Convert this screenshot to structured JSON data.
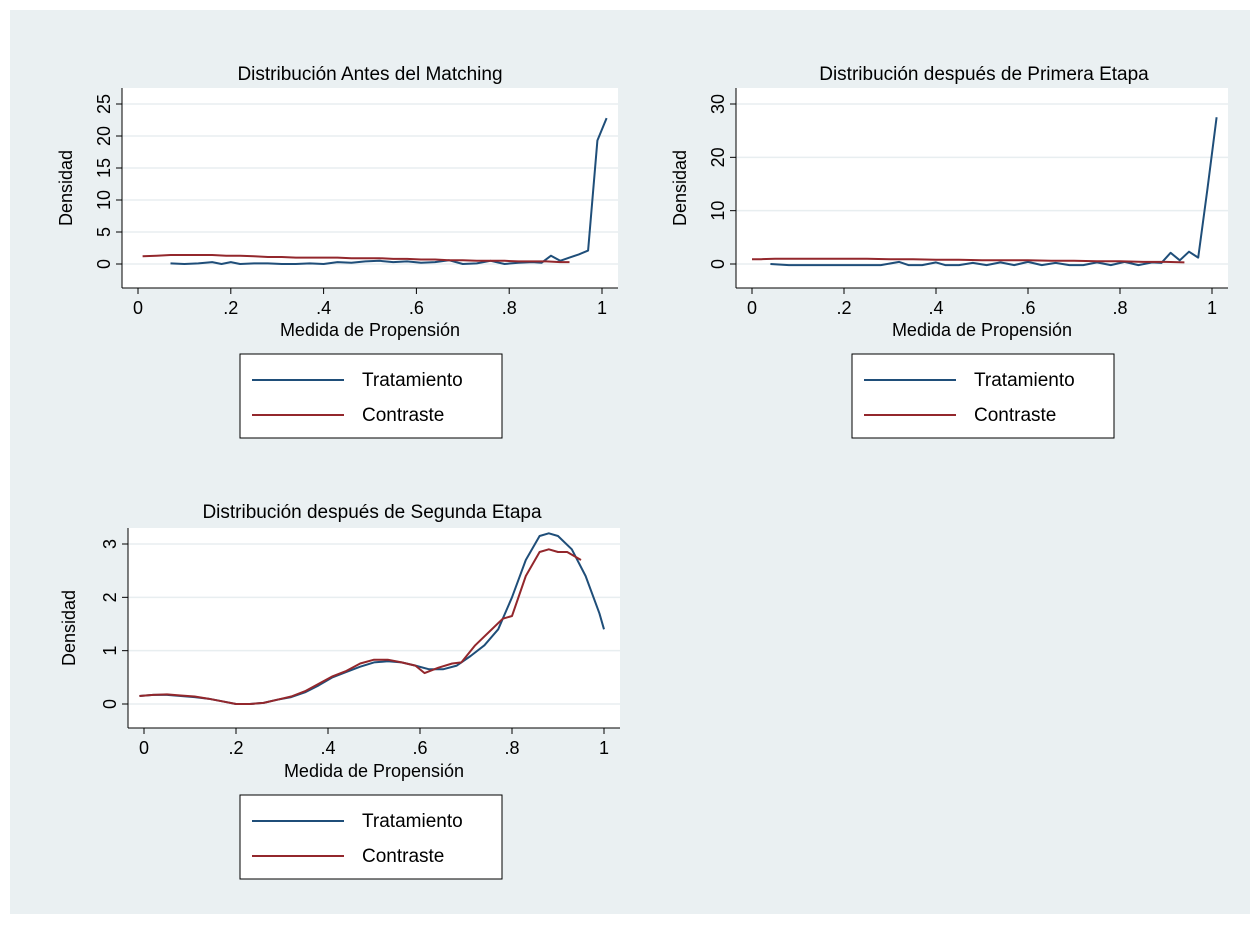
{
  "colors": {
    "background": "#ffffff",
    "panel_background": "#eaf0f2",
    "plot_background": "#ffffff",
    "gridline": "#e8eef0",
    "axis": "#000000",
    "tratamiento": "#1f4e79",
    "contraste": "#93272c"
  },
  "chart_data": [
    {
      "type": "line",
      "title": "Distribución Antes del Matching",
      "xlabel": "Medida de Propensión",
      "ylabel": "Densidad",
      "xlim": [
        0,
        1
      ],
      "ylim": [
        0,
        25
      ],
      "xticks": [
        0,
        0.2,
        0.4,
        0.6,
        0.8,
        1
      ],
      "xtick_labels": [
        "0",
        ".2",
        ".4",
        ".6",
        ".8",
        "1"
      ],
      "yticks": [
        0,
        5,
        10,
        15,
        20,
        25
      ],
      "ytick_labels": [
        "0",
        "5",
        "10",
        "15",
        "20",
        "25"
      ],
      "grid": true,
      "legend": {
        "position": "bottom",
        "entries": [
          "Tratamiento",
          "Contraste"
        ]
      },
      "series": [
        {
          "name": "Tratamiento",
          "color_key": "tratamiento",
          "x": [
            0.07,
            0.1,
            0.13,
            0.16,
            0.18,
            0.2,
            0.22,
            0.25,
            0.28,
            0.31,
            0.34,
            0.37,
            0.4,
            0.43,
            0.46,
            0.49,
            0.52,
            0.55,
            0.58,
            0.61,
            0.64,
            0.67,
            0.7,
            0.73,
            0.76,
            0.79,
            0.82,
            0.85,
            0.87,
            0.89,
            0.91,
            0.93,
            0.95,
            0.97,
            0.99,
            1.01
          ],
          "values": [
            0.1,
            0.0,
            0.1,
            0.3,
            0.0,
            0.3,
            0.0,
            0.1,
            0.1,
            0.0,
            0.0,
            0.1,
            0.0,
            0.3,
            0.2,
            0.4,
            0.5,
            0.3,
            0.4,
            0.2,
            0.3,
            0.6,
            0.0,
            0.1,
            0.5,
            0.0,
            0.2,
            0.3,
            0.2,
            1.3,
            0.5,
            1.0,
            1.5,
            2.1,
            19.3,
            22.8
          ]
        },
        {
          "name": "Contraste",
          "color_key": "contraste",
          "x": [
            0.01,
            0.04,
            0.07,
            0.1,
            0.13,
            0.16,
            0.19,
            0.22,
            0.25,
            0.28,
            0.31,
            0.34,
            0.37,
            0.4,
            0.43,
            0.46,
            0.49,
            0.52,
            0.55,
            0.58,
            0.61,
            0.64,
            0.67,
            0.7,
            0.73,
            0.76,
            0.79,
            0.82,
            0.85,
            0.88,
            0.91,
            0.93
          ],
          "values": [
            1.2,
            1.3,
            1.4,
            1.4,
            1.4,
            1.4,
            1.3,
            1.3,
            1.2,
            1.1,
            1.1,
            1.0,
            1.0,
            1.0,
            1.0,
            0.9,
            0.9,
            0.9,
            0.8,
            0.8,
            0.7,
            0.7,
            0.6,
            0.6,
            0.5,
            0.5,
            0.5,
            0.4,
            0.4,
            0.4,
            0.3,
            0.3
          ]
        }
      ]
    },
    {
      "type": "line",
      "title": "Distribución después de Primera Etapa",
      "xlabel": "Medida de Propensión",
      "ylabel": "Densidad",
      "xlim": [
        0,
        1
      ],
      "ylim": [
        0,
        30
      ],
      "xticks": [
        0,
        0.2,
        0.4,
        0.6,
        0.8,
        1
      ],
      "xtick_labels": [
        "0",
        ".2",
        ".4",
        ".6",
        ".8",
        "1"
      ],
      "yticks": [
        0,
        10,
        20,
        30
      ],
      "ytick_labels": [
        "0",
        "10",
        "20",
        "30"
      ],
      "grid": true,
      "legend": {
        "position": "bottom",
        "entries": [
          "Tratamiento",
          "Contraste"
        ]
      },
      "series": [
        {
          "name": "Tratamiento",
          "color_key": "tratamiento",
          "x": [
            0.04,
            0.08,
            0.12,
            0.16,
            0.2,
            0.24,
            0.28,
            0.32,
            0.34,
            0.37,
            0.4,
            0.42,
            0.45,
            0.48,
            0.51,
            0.54,
            0.57,
            0.6,
            0.63,
            0.66,
            0.69,
            0.72,
            0.75,
            0.78,
            0.81,
            0.84,
            0.87,
            0.89,
            0.91,
            0.93,
            0.95,
            0.97,
            0.99,
            1.01
          ],
          "values": [
            0.0,
            -0.2,
            -0.2,
            -0.2,
            -0.2,
            -0.2,
            -0.2,
            0.4,
            -0.2,
            -0.2,
            0.3,
            -0.2,
            -0.2,
            0.2,
            -0.2,
            0.3,
            -0.2,
            0.4,
            -0.2,
            0.2,
            -0.2,
            -0.2,
            0.3,
            -0.2,
            0.4,
            -0.2,
            0.3,
            0.2,
            2.1,
            0.7,
            2.3,
            1.2,
            14.0,
            27.5
          ]
        },
        {
          "name": "Contraste",
          "color_key": "contraste",
          "x": [
            0.0,
            0.02,
            0.05,
            0.1,
            0.15,
            0.2,
            0.25,
            0.3,
            0.35,
            0.4,
            0.45,
            0.5,
            0.55,
            0.6,
            0.65,
            0.7,
            0.75,
            0.8,
            0.85,
            0.9,
            0.94
          ],
          "values": [
            0.9,
            0.9,
            1.0,
            1.0,
            1.0,
            1.0,
            1.0,
            0.9,
            0.9,
            0.8,
            0.8,
            0.7,
            0.7,
            0.7,
            0.6,
            0.6,
            0.5,
            0.5,
            0.4,
            0.4,
            0.3
          ]
        }
      ]
    },
    {
      "type": "line",
      "title": "Distribución después de Segunda Etapa",
      "xlabel": "Medida de Propensión",
      "ylabel": "Densidad",
      "xlim": [
        0,
        1
      ],
      "ylim": [
        0,
        3
      ],
      "xticks": [
        0,
        0.2,
        0.4,
        0.6,
        0.8,
        1
      ],
      "xtick_labels": [
        "0",
        ".2",
        ".4",
        ".6",
        ".8",
        "1"
      ],
      "yticks": [
        0,
        1,
        2,
        3
      ],
      "ytick_labels": [
        "0",
        "1",
        "2",
        "3"
      ],
      "grid": true,
      "legend": {
        "position": "bottom",
        "entries": [
          "Tratamiento",
          "Contraste"
        ]
      },
      "series": [
        {
          "name": "Tratamiento",
          "color_key": "tratamiento",
          "x": [
            -0.01,
            0.02,
            0.05,
            0.08,
            0.11,
            0.14,
            0.17,
            0.2,
            0.23,
            0.26,
            0.29,
            0.32,
            0.35,
            0.38,
            0.41,
            0.44,
            0.47,
            0.5,
            0.53,
            0.56,
            0.59,
            0.62,
            0.65,
            0.68,
            0.71,
            0.74,
            0.77,
            0.8,
            0.83,
            0.86,
            0.88,
            0.9,
            0.93,
            0.96,
            0.99,
            1.0
          ],
          "values": [
            0.15,
            0.17,
            0.17,
            0.15,
            0.13,
            0.1,
            0.05,
            0.0,
            0.0,
            0.02,
            0.08,
            0.13,
            0.22,
            0.35,
            0.5,
            0.6,
            0.7,
            0.78,
            0.8,
            0.78,
            0.72,
            0.65,
            0.65,
            0.72,
            0.9,
            1.1,
            1.4,
            2.0,
            2.7,
            3.15,
            3.2,
            3.15,
            2.9,
            2.4,
            1.7,
            1.4
          ]
        },
        {
          "name": "Contraste",
          "color_key": "contraste",
          "x": [
            -0.01,
            0.02,
            0.05,
            0.08,
            0.11,
            0.14,
            0.17,
            0.2,
            0.23,
            0.26,
            0.29,
            0.32,
            0.35,
            0.38,
            0.41,
            0.44,
            0.47,
            0.5,
            0.53,
            0.56,
            0.59,
            0.61,
            0.64,
            0.67,
            0.69,
            0.72,
            0.75,
            0.78,
            0.8,
            0.83,
            0.86,
            0.88,
            0.9,
            0.92,
            0.95
          ],
          "values": [
            0.15,
            0.17,
            0.18,
            0.16,
            0.14,
            0.1,
            0.05,
            0.0,
            0.0,
            0.02,
            0.08,
            0.14,
            0.24,
            0.38,
            0.52,
            0.62,
            0.76,
            0.83,
            0.83,
            0.78,
            0.72,
            0.58,
            0.68,
            0.76,
            0.78,
            1.1,
            1.35,
            1.6,
            1.65,
            2.4,
            2.85,
            2.9,
            2.85,
            2.85,
            2.7
          ]
        }
      ]
    }
  ]
}
